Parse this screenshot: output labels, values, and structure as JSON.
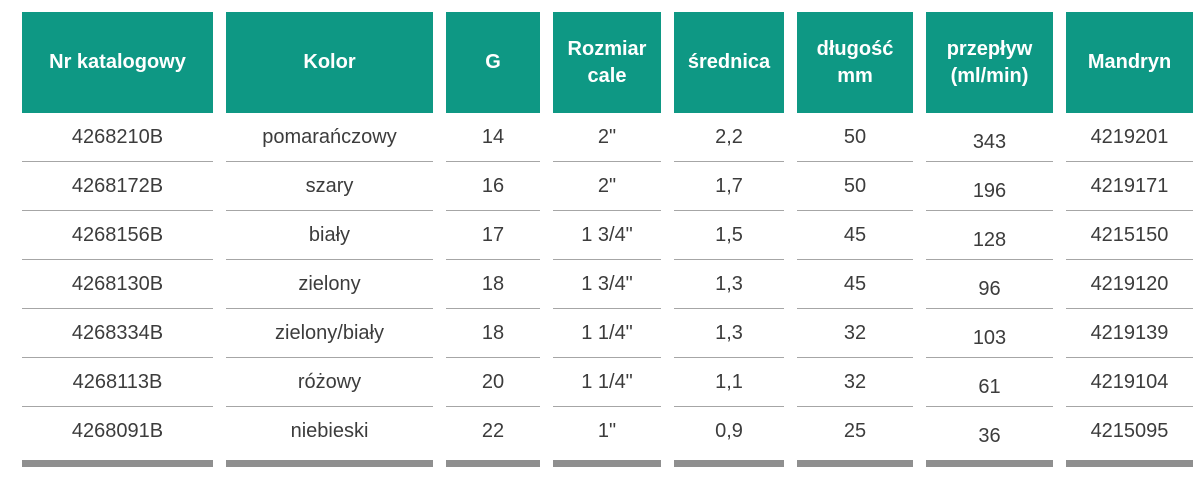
{
  "colors": {
    "header_bg": "#0e9884",
    "header_text": "#ffffff",
    "body_text": "#3c3c3c",
    "row_divider": "#a6a6a6",
    "footer_bar": "#8f8f8f"
  },
  "table": {
    "headers": [
      "Nr katalogowy",
      "Kolor",
      "G",
      "Rozmiar cale",
      "średnica",
      "długość mm",
      "przepływ (ml/min)",
      "Mandryn"
    ],
    "rows": [
      [
        "4268210B",
        "pomarańczowy",
        "14",
        "2\"",
        "2,2",
        "50",
        "343",
        "4219201"
      ],
      [
        "4268172B",
        "szary",
        "16",
        "2\"",
        "1,7",
        "50",
        "196",
        "4219171"
      ],
      [
        "4268156B",
        "biały",
        "17",
        "1 3/4\"",
        "1,5",
        "45",
        "128",
        "4215150"
      ],
      [
        "4268130B",
        "zielony",
        "18",
        "1 3/4\"",
        "1,3",
        "45",
        "96",
        "4219120"
      ],
      [
        "4268334B",
        "zielony/biały",
        "18",
        "1 1/4\"",
        "1,3",
        "32",
        "103",
        "4219139"
      ],
      [
        "4268113B",
        "różowy",
        "20",
        "1 1/4\"",
        "1,1",
        "32",
        "61",
        "4219104"
      ],
      [
        "4268091B",
        "niebieski",
        "22",
        "1\"",
        "0,9",
        "25",
        "36",
        "4215095"
      ]
    ]
  }
}
